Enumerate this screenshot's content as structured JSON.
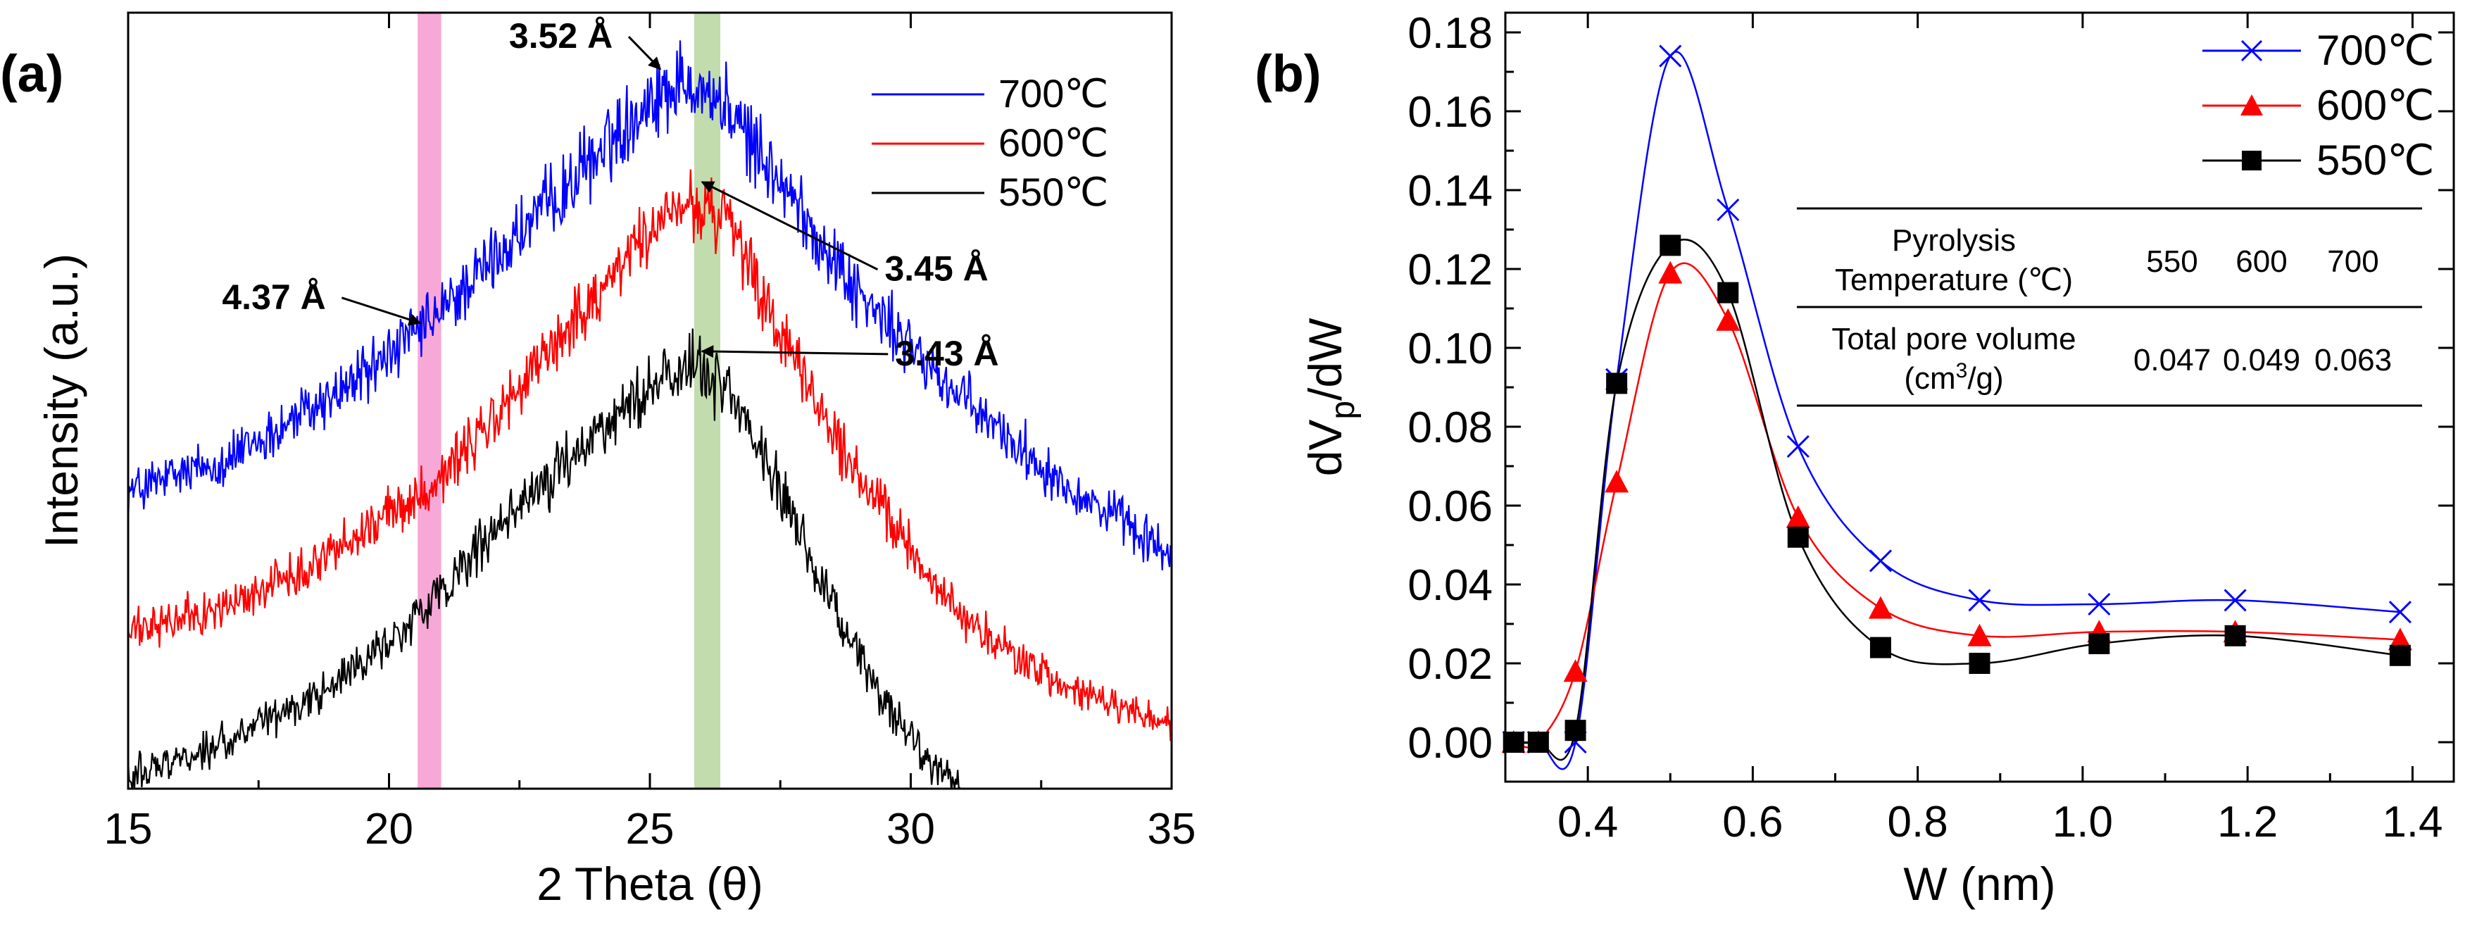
{
  "chart_data": [
    {
      "panel_label": "(a)",
      "type": "line",
      "xlabel": "2 Theta (θ)",
      "ylabel": "Intensity (a.u.)",
      "xlim": [
        15,
        35
      ],
      "ylim": [
        0,
        1.1
      ],
      "xticks": [
        15,
        20,
        25,
        30,
        35
      ],
      "xtick_labels": [
        "15",
        "20",
        "25",
        "30",
        "35"
      ],
      "highlight_bands": [
        {
          "x_range": [
            20.55,
            21.0
          ],
          "color": "#f7a8d6"
        },
        {
          "x_range": [
            25.85,
            26.35
          ],
          "color": "#c2dcae"
        }
      ],
      "legend": {
        "position": "top-right",
        "entries": [
          "700℃",
          "600℃",
          "550℃"
        ]
      },
      "series": [
        {
          "name": "700℃",
          "color": "#0000ff",
          "noise": 0.045,
          "x": [
            15,
            17,
            19,
            20.8,
            22,
            23.5,
            25,
            25.8,
            26.5,
            27.5,
            29,
            31,
            33,
            35
          ],
          "values": [
            0.42,
            0.47,
            0.56,
            0.66,
            0.75,
            0.86,
            0.98,
            1.01,
            0.96,
            0.86,
            0.7,
            0.55,
            0.43,
            0.33
          ]
        },
        {
          "name": "600℃",
          "color": "#ff0000",
          "noise": 0.045,
          "x": [
            15,
            17,
            19,
            20.8,
            22,
            23.5,
            25,
            25.8,
            26.5,
            27.5,
            29,
            31,
            33,
            35
          ],
          "values": [
            0.22,
            0.26,
            0.34,
            0.43,
            0.52,
            0.66,
            0.79,
            0.83,
            0.8,
            0.64,
            0.44,
            0.24,
            0.14,
            0.09
          ]
        },
        {
          "name": "550℃",
          "color": "#000000",
          "noise": 0.05,
          "x": [
            15,
            17,
            19,
            20.8,
            22,
            23.5,
            25,
            25.8,
            26.5,
            27.5,
            28.5,
            29.5,
            30.3,
            31
          ],
          "values": [
            0.02,
            0.07,
            0.15,
            0.26,
            0.36,
            0.47,
            0.57,
            0.61,
            0.56,
            0.43,
            0.26,
            0.12,
            0.04,
            0.0
          ]
        }
      ],
      "annotations": [
        {
          "text": "3.52 Å",
          "text_at": [
            22.3,
            1.05
          ],
          "arrow_to": [
            25.2,
            1.02
          ]
        },
        {
          "text": "4.37 Å",
          "text_at": [
            16.8,
            0.68
          ],
          "arrow_to": [
            20.6,
            0.66
          ]
        },
        {
          "text": "3.45 Å",
          "text_at": [
            29.5,
            0.72
          ],
          "arrow_to": [
            26.0,
            0.86
          ]
        },
        {
          "text": "3.43 Å",
          "text_at": [
            29.7,
            0.6
          ],
          "arrow_to": [
            26.0,
            0.62
          ]
        }
      ]
    },
    {
      "panel_label": "(b)",
      "type": "line",
      "xlabel": "W (nm)",
      "ylabel": "dVp/dW",
      "ylabel_main": "dV",
      "ylabel_subscript": "p",
      "ylabel_tail": "/dW",
      "xlim": [
        0.3,
        1.45
      ],
      "ylim": [
        -0.01,
        0.185
      ],
      "xticks": [
        0.4,
        0.6,
        0.8,
        1.0,
        1.2,
        1.4
      ],
      "xtick_labels": [
        "0.4",
        "0.6",
        "0.8",
        "1.0",
        "1.2",
        "1.4"
      ],
      "yticks": [
        0.0,
        0.02,
        0.04,
        0.06,
        0.08,
        0.1,
        0.12,
        0.14,
        0.16,
        0.18
      ],
      "ytick_labels": [
        "0.00",
        "0.02",
        "0.04",
        "0.06",
        "0.08",
        "0.10",
        "0.12",
        "0.14",
        "0.16",
        "0.18"
      ],
      "legend": {
        "position": "top-right",
        "entries": [
          "700℃",
          "600℃",
          "550℃"
        ]
      },
      "series": [
        {
          "name": "700℃",
          "color": "#0000ff",
          "marker": "x",
          "x": [
            0.31,
            0.34,
            0.385,
            0.435,
            0.5,
            0.57,
            0.655,
            0.755,
            0.875,
            1.02,
            1.185,
            1.385
          ],
          "values": [
            0.0,
            0.0,
            0.0,
            0.092,
            0.174,
            0.135,
            0.075,
            0.046,
            0.036,
            0.035,
            0.036,
            0.033
          ]
        },
        {
          "name": "600℃",
          "color": "#ff0000",
          "marker": "triangle",
          "x": [
            0.31,
            0.34,
            0.385,
            0.435,
            0.5,
            0.57,
            0.655,
            0.755,
            0.875,
            1.02,
            1.185,
            1.385
          ],
          "values": [
            0.0,
            0.0,
            0.018,
            0.066,
            0.119,
            0.107,
            0.057,
            0.034,
            0.027,
            0.028,
            0.028,
            0.026
          ]
        },
        {
          "name": "550℃",
          "color": "#000000",
          "marker": "square",
          "x": [
            0.31,
            0.34,
            0.385,
            0.435,
            0.5,
            0.57,
            0.655,
            0.755,
            0.875,
            1.02,
            1.185,
            1.385
          ],
          "values": [
            0.0,
            0.0,
            0.003,
            0.091,
            0.126,
            0.114,
            0.052,
            0.024,
            0.02,
            0.025,
            0.027,
            0.022
          ]
        }
      ],
      "inset_table": {
        "row1_label_line1": "Pyrolysis",
        "row1_label_line2": "Temperature (℃)",
        "row1_values": [
          "550",
          "600",
          "700"
        ],
        "row2_label_line1": "Total pore volume",
        "row2_label_line2_main": "(cm",
        "row2_label_line2_sup": "3",
        "row2_label_line2_tail": "/g)",
        "row2_values": [
          "0.047",
          "0.049",
          "0.063"
        ]
      }
    }
  ]
}
